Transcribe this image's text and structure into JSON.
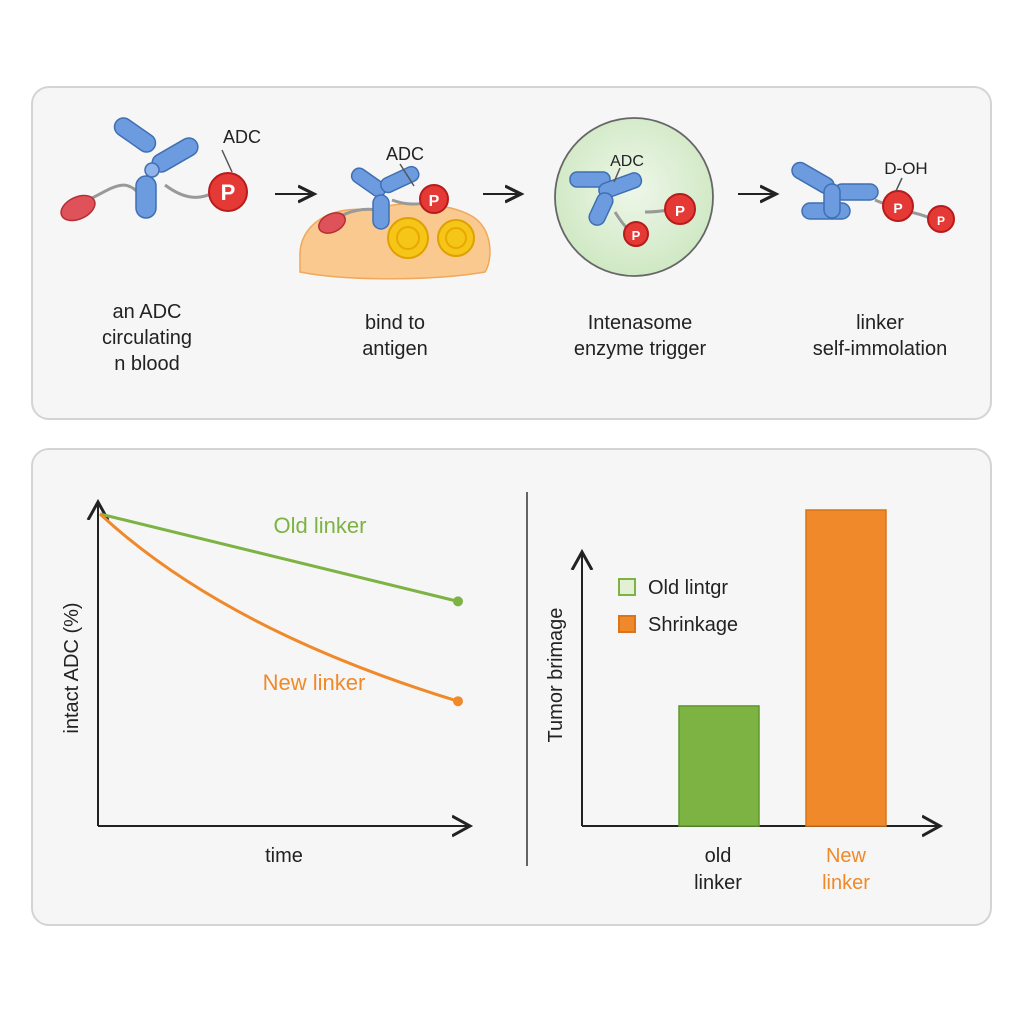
{
  "colors": {
    "old": "#7cb342",
    "new": "#f0892a",
    "antibody": "#5b8fd6",
    "payload": "#e53935",
    "tumor": "#f7c27a",
    "lysosome": "#dff0d6"
  },
  "process": {
    "steps": [
      {
        "tag": "ADC",
        "caption": [
          "an ADC",
          "circulating",
          "n blood"
        ]
      },
      {
        "tag": "ADC",
        "caption": [
          "bind to",
          "antigen"
        ]
      },
      {
        "tag": "ADC",
        "caption": [
          "Intenasome",
          "enzyme trigger"
        ]
      },
      {
        "tag": "D-OH",
        "caption": [
          "linker",
          "self-immolation"
        ]
      }
    ],
    "payload_letter": "P"
  },
  "chart_data": [
    {
      "type": "line",
      "xlabel": "time",
      "ylabel": "intact ADC (%)",
      "x": [
        0,
        1
      ],
      "series": [
        {
          "name": "Old linker",
          "values": [
            100,
            72
          ]
        },
        {
          "name": "New linker",
          "values": [
            100,
            40
          ]
        }
      ],
      "ylim": [
        0,
        100
      ]
    },
    {
      "type": "bar",
      "ylabel": "Tumor brimage",
      "categories": [
        "old linker",
        "New linker"
      ],
      "category_lines": [
        [
          "old",
          "linker"
        ],
        [
          "New",
          "linker"
        ]
      ],
      "values": [
        38,
        100
      ],
      "legend": [
        "Old lintgr",
        "Shrinkage"
      ],
      "ylim": [
        0,
        110
      ]
    }
  ]
}
